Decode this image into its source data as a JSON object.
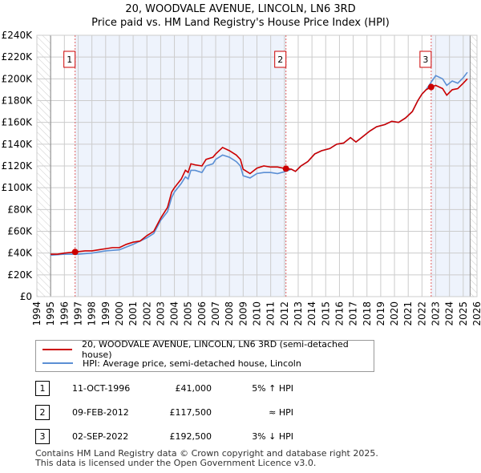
{
  "title": "20, WOODVALE AVENUE, LINCOLN, LN6 3RD",
  "subtitle": "Price paid vs. HM Land Registry's House Price Index (HPI)",
  "chart_data": {
    "type": "line",
    "title": "20, WOODVALE AVENUE, LINCOLN, LN6 3RD",
    "subtitle": "Price paid vs. HM Land Registry's House Price Index (HPI)",
    "xlim": [
      1994,
      2026
    ],
    "ylim": [
      0,
      240000
    ],
    "x_ticks": [
      "1994",
      "1995",
      "1996",
      "1997",
      "1998",
      "1999",
      "2000",
      "2001",
      "2002",
      "2003",
      "2004",
      "2005",
      "2006",
      "2007",
      "2008",
      "2009",
      "2010",
      "2011",
      "2012",
      "2013",
      "2014",
      "2015",
      "2016",
      "2017",
      "2018",
      "2019",
      "2020",
      "2021",
      "2022",
      "2023",
      "2024",
      "2025",
      "2026"
    ],
    "y_ticks": [
      "£0",
      "£20K",
      "£40K",
      "£60K",
      "£80K",
      "£100K",
      "£120K",
      "£140K",
      "£160K",
      "£180K",
      "£200K",
      "£220K",
      "£240K"
    ],
    "grid": true,
    "series": [
      {
        "name": "20, WOODVALE AVENUE, LINCOLN, LN6 3RD (semi-detached house)",
        "color": "#cc0000",
        "x": [
          1995,
          1995.5,
          1996,
          1996.78,
          1997.5,
          1998,
          1998.5,
          1999,
          1999.5,
          2000,
          2000.5,
          2001,
          2001.5,
          2002,
          2002.5,
          2003,
          2003.5,
          2003.8,
          2004,
          2004.5,
          2004.8,
          2005,
          2005.2,
          2005.5,
          2006,
          2006.3,
          2006.8,
          2007,
          2007.5,
          2008,
          2008.5,
          2008.8,
          2009,
          2009.5,
          2010,
          2010.5,
          2011,
          2011.5,
          2012.1,
          2012.5,
          2012.8,
          2013.2,
          2013.7,
          2014.2,
          2014.7,
          2015.3,
          2015.8,
          2016.3,
          2016.8,
          2017.2,
          2017.7,
          2018.2,
          2018.7,
          2019.3,
          2019.8,
          2020.3,
          2020.8,
          2021.3,
          2021.7,
          2022,
          2022.3,
          2022.67,
          2023,
          2023.5,
          2023.8,
          2024.2,
          2024.6,
          2025,
          2025.3
        ],
        "y": [
          39000,
          39000,
          40000,
          41000,
          42000,
          42000,
          43000,
          44000,
          45000,
          45000,
          48000,
          50000,
          51000,
          56000,
          60000,
          72000,
          82000,
          96000,
          100000,
          108000,
          116000,
          114000,
          122000,
          121000,
          120000,
          126000,
          128000,
          131000,
          137000,
          134000,
          130000,
          126000,
          117000,
          113000,
          118000,
          120000,
          119000,
          119000,
          117500,
          117000,
          115000,
          120000,
          124000,
          131000,
          134000,
          136000,
          140000,
          141000,
          146000,
          142000,
          147000,
          152000,
          156000,
          158000,
          161000,
          160000,
          164000,
          170000,
          180000,
          186000,
          190000,
          192500,
          194000,
          191000,
          185000,
          190000,
          191000,
          196000,
          200000
        ]
      },
      {
        "name": "HPI: Average price, semi-detached house, Lincoln",
        "color": "#5b8fd4",
        "x": [
          1995,
          1996,
          1997,
          1998,
          1999,
          2000,
          2001,
          2002,
          2002.5,
          2003,
          2003.5,
          2003.8,
          2004,
          2004.5,
          2004.8,
          2005,
          2005.2,
          2005.5,
          2006,
          2006.3,
          2006.8,
          2007,
          2007.5,
          2008,
          2008.5,
          2008.8,
          2009,
          2009.5,
          2010,
          2010.5,
          2011,
          2011.5,
          2012.1,
          2012.5,
          2012.8,
          2013.2,
          2013.7,
          2014.2,
          2014.7,
          2015.3,
          2015.8,
          2016.3,
          2016.8,
          2017.2,
          2017.7,
          2018.2,
          2018.7,
          2019.3,
          2019.8,
          2020.3,
          2020.8,
          2021.3,
          2021.7,
          2022,
          2022.3,
          2022.67,
          2023,
          2023.5,
          2023.8,
          2024.2,
          2024.6,
          2025,
          2025.3
        ],
        "y": [
          38000,
          39000,
          39000,
          40000,
          42000,
          43000,
          48000,
          54000,
          58000,
          70000,
          78000,
          91000,
          96000,
          104000,
          110000,
          108000,
          116000,
          116000,
          114000,
          120000,
          122000,
          126000,
          130000,
          128000,
          124000,
          120000,
          111000,
          109000,
          113000,
          114000,
          114000,
          113000,
          115000,
          117000,
          115000,
          120000,
          124000,
          131000,
          134000,
          136000,
          140000,
          141000,
          146000,
          142000,
          147000,
          152000,
          156000,
          158000,
          161000,
          160000,
          164000,
          170000,
          180000,
          186000,
          190000,
          197000,
          203000,
          200000,
          194000,
          198000,
          196000,
          201000,
          206000
        ]
      }
    ],
    "sales": [
      {
        "label": "1",
        "x": 1996.78,
        "y": 41000
      },
      {
        "label": "2",
        "x": 2012.11,
        "y": 117500
      },
      {
        "label": "3",
        "x": 2022.67,
        "y": 192500
      }
    ],
    "shaded_periods": [
      [
        1996.78,
        2012.11
      ],
      [
        2022.67,
        2025.5
      ]
    ],
    "hatched_periods": [
      [
        1994,
        1995
      ],
      [
        2025.5,
        2026
      ]
    ],
    "legend_position": "bottom"
  },
  "legend": {
    "items": [
      "20, WOODVALE AVENUE, LINCOLN, LN6 3RD (semi-detached house)",
      "HPI: Average price, semi-detached house, Lincoln"
    ]
  },
  "transactions": [
    {
      "num": "1",
      "date": "11-OCT-1996",
      "price": "£41,000",
      "hpi": "5% ↑ HPI"
    },
    {
      "num": "2",
      "date": "09-FEB-2012",
      "price": "£117,500",
      "hpi": "≈ HPI"
    },
    {
      "num": "3",
      "date": "02-SEP-2022",
      "price": "£192,500",
      "hpi": "3% ↓ HPI"
    }
  ],
  "footer": [
    "Contains HM Land Registry data © Crown copyright and database right 2025.",
    "This data is licensed under the Open Government Licence v3.0."
  ]
}
